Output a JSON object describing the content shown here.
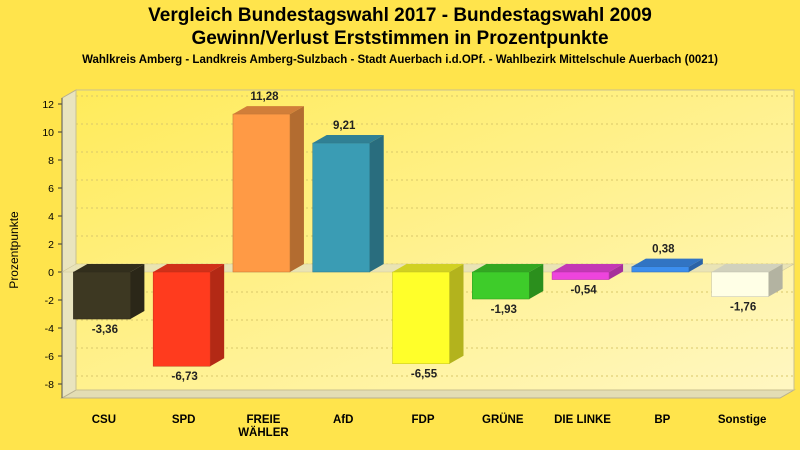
{
  "header": {
    "title_line1": "Vergleich Bundestagswahl 2017 - Bundestagswahl 2009",
    "title_line2": "Gewinn/Verlust Erststimmen in Prozentpunkte",
    "subtitle": "Wahlkreis Amberg - Landkreis Amberg-Sulzbach - Stadt Auerbach i.d.OPf. - Wahlbezirk Mittelschule Auerbach (0021)"
  },
  "chart_data": {
    "type": "bar",
    "title": "Vergleich Bundestagswahl 2017 - Bundestagswahl 2009 / Gewinn/Verlust Erststimmen in Prozentpunkte",
    "xlabel": "",
    "ylabel": "Prozentpunkte",
    "ylim": [
      -9,
      13
    ],
    "yticks": [
      12,
      10,
      8,
      6,
      4,
      2,
      0,
      -2,
      -4,
      -6,
      -8
    ],
    "grid": true,
    "categories": [
      "CSU",
      "SPD",
      "FREIE WÄHLER",
      "AfD",
      "FDP",
      "GRÜNE",
      "DIE LINKE",
      "BP",
      "Sonstige"
    ],
    "category_lines": [
      [
        "CSU"
      ],
      [
        "SPD"
      ],
      [
        "FREIE",
        "WÄHLER"
      ],
      [
        "AfD"
      ],
      [
        "FDP"
      ],
      [
        "GRÜNE"
      ],
      [
        "DIE LINKE"
      ],
      [
        "BP"
      ],
      [
        "Sonstige"
      ]
    ],
    "values": [
      -3.36,
      -6.73,
      11.28,
      9.21,
      -6.55,
      -1.93,
      -0.54,
      0.38,
      -1.76
    ],
    "value_labels": [
      "-3,36",
      "-6,73",
      "11,28",
      "9,21",
      "-6,55",
      "-1,93",
      "-0,54",
      "0,38",
      "-1,76"
    ],
    "colors": [
      "#3D3822",
      "#FF3B1E",
      "#FF9A45",
      "#3A9CB4",
      "#FFFF2A",
      "#3ECC2A",
      "#EE44DD",
      "#3C8EEE",
      "#FFFFE6"
    ]
  }
}
